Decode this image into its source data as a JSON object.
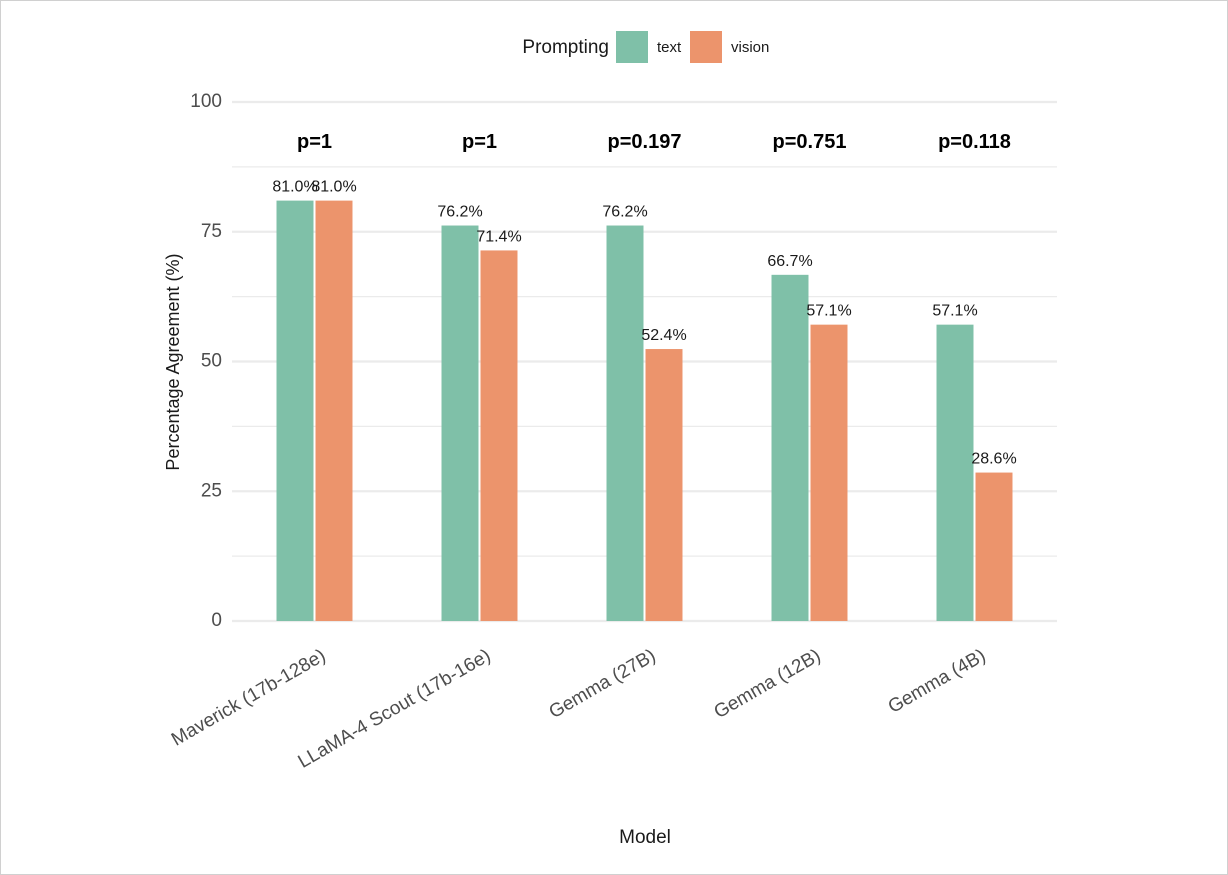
{
  "chart_data": {
    "type": "bar",
    "title": "",
    "xlabel": "Model",
    "ylabel": "Percentage Agreement (%)",
    "ylim": [
      0,
      100
    ],
    "yticks": [
      "0",
      "25",
      "50",
      "75",
      "100"
    ],
    "grid": true,
    "legend": {
      "title": "Prompting",
      "placement": "top",
      "entries": [
        "text",
        "vision"
      ]
    },
    "categories": [
      "Maverick (17b-128e)",
      "LLaMA-4 Scout (17b-16e)",
      "Gemma (27B)",
      "Gemma (12B)",
      "Gemma (4B)"
    ],
    "series": [
      {
        "name": "text",
        "color": "#7fc0a8",
        "values": [
          81.0,
          76.2,
          76.2,
          66.7,
          57.1
        ],
        "labels": [
          "81.0%",
          "76.2%",
          "76.2%",
          "66.7%",
          "57.1%"
        ]
      },
      {
        "name": "vision",
        "color": "#ec946c",
        "values": [
          81.0,
          71.4,
          52.4,
          57.1,
          28.6
        ],
        "labels": [
          "81.0%",
          "71.4%",
          "52.4%",
          "57.1%",
          "28.6%"
        ]
      }
    ],
    "annotations": [
      "p=1",
      "p=1",
      "p=0.197",
      "p=0.751",
      "p=0.118"
    ]
  }
}
